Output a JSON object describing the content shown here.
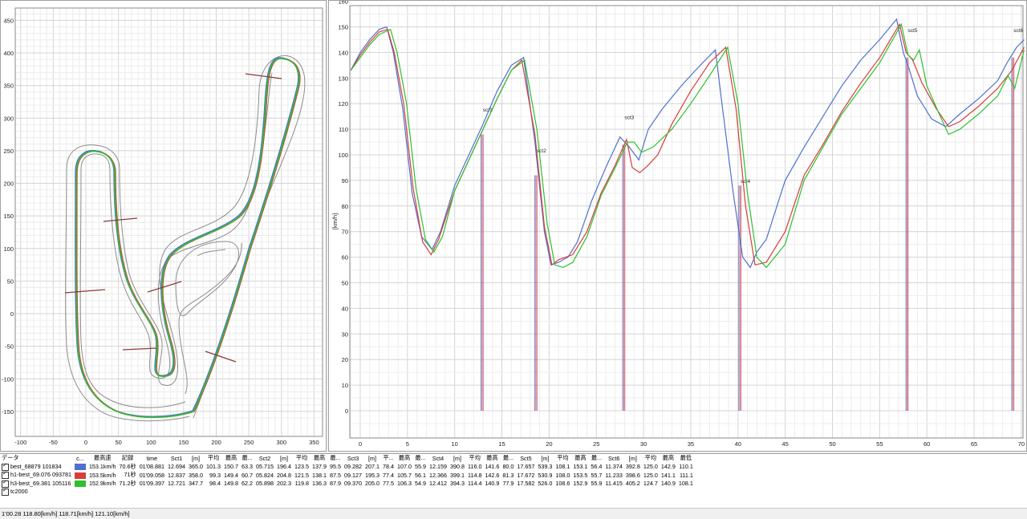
{
  "track_map": {
    "x_ticks": [
      "-100",
      "-50",
      "0",
      "50",
      "100",
      "150",
      "200",
      "250",
      "300",
      "350"
    ],
    "y_ticks": [
      "450",
      "400",
      "350",
      "300",
      "250",
      "200",
      "150",
      "100",
      "50",
      "0",
      "-50",
      "-100",
      "-150"
    ],
    "colors": {
      "border": "#8c8c8c",
      "green": "#2ec02e",
      "red": "#d83c3c",
      "blue": "#5070d0",
      "sector_line": "#8b3a3a"
    }
  },
  "speed_chart": {
    "y_unit_label": "[km/h]",
    "y_ticks": [
      "160",
      "150",
      "140",
      "130",
      "120",
      "110",
      "100",
      "90",
      "80",
      "70",
      "60",
      "50",
      "40",
      "30",
      "20",
      "10",
      "0"
    ],
    "x_ticks": [
      "0",
      "5",
      "10",
      "15",
      "20",
      "25",
      "30",
      "35",
      "40",
      "45",
      "50",
      "55",
      "60",
      "65",
      "70"
    ],
    "sector_labels": [
      "sct1",
      "sct2",
      "sct3",
      "sct4",
      "sct5",
      "sct6"
    ]
  },
  "chart_data": {
    "type": "line",
    "xlabel": "",
    "ylabel": "[km/h]",
    "xlim": [
      -1,
      70.3
    ],
    "ylim": [
      -5,
      161
    ],
    "grid": true,
    "series": [
      {
        "name": "best_68879 101834",
        "color": "#5070d0",
        "x": [
          -1,
          0,
          1,
          2,
          2.8,
          3.5,
          4.5,
          5.5,
          6.5,
          7.6,
          8.5,
          10,
          11.5,
          13,
          14.5,
          16,
          17.3,
          18.5,
          19.5,
          20.2,
          21,
          22,
          23,
          24.5,
          26,
          27.5,
          28.5,
          29.5,
          30.5,
          32,
          34,
          36,
          37.6,
          38.3,
          39.5,
          40.5,
          41.3,
          42,
          43,
          45,
          47,
          49,
          51,
          53,
          55,
          56.8,
          57.5,
          58,
          59,
          60.5,
          62,
          63.5,
          65.5,
          67.5,
          68.5,
          69.5,
          70.3
        ],
        "y": [
          133,
          140,
          145,
          149,
          150,
          140,
          118,
          85,
          68,
          63,
          70,
          88,
          100,
          112,
          125,
          135,
          138,
          105,
          70,
          57,
          58,
          60,
          66,
          82,
          95,
          107,
          103,
          98,
          110,
          118,
          127,
          135,
          141,
          120,
          85,
          60,
          56,
          62,
          67,
          90,
          103,
          115,
          127,
          137,
          145,
          153,
          140,
          135,
          123,
          114,
          111,
          116,
          122,
          129,
          136,
          142,
          145
        ]
      },
      {
        "name": "h1-best_69.076 093781",
        "color": "#d83c3c",
        "x": [
          -1,
          0,
          1,
          2,
          2.9,
          3.6,
          4.6,
          5.6,
          6.6,
          7.5,
          8.3,
          10,
          11.5,
          13,
          14.5,
          16,
          17.1,
          18.5,
          19.5,
          20.3,
          21,
          22.5,
          24,
          25.5,
          27,
          28.2,
          28.8,
          29.6,
          30.5,
          31.5,
          33,
          35,
          37,
          38.7,
          39.8,
          40.8,
          41.8,
          43,
          45,
          47,
          49,
          51,
          53,
          55,
          57.1,
          57.8,
          58.5,
          59.5,
          61,
          62.3,
          63.5,
          65.5,
          67.5,
          69,
          70.3
        ],
        "y": [
          133,
          139,
          144,
          148,
          149,
          140,
          120,
          87,
          66,
          61,
          67,
          86,
          98,
          110,
          122,
          133,
          137,
          108,
          72,
          57,
          59,
          61,
          70,
          85,
          96,
          106,
          95,
          93,
          96,
          100,
          112,
          125,
          136,
          142,
          118,
          80,
          57,
          58,
          70,
          92,
          104,
          117,
          128,
          138,
          151,
          140,
          137,
          128,
          118,
          111,
          113,
          119,
          126,
          133,
          142
        ]
      },
      {
        "name": "h3-best_69.381 105116",
        "color": "#2ec02e",
        "x": [
          -1,
          0,
          1,
          2,
          3.2,
          3.9,
          4.9,
          5.9,
          6.9,
          7.8,
          8.7,
          10,
          11.5,
          13,
          14.5,
          16,
          17.4,
          18.7,
          19.8,
          20.6,
          21.5,
          22.5,
          24,
          25.5,
          27,
          28.3,
          29,
          29.8,
          31,
          33,
          35,
          37,
          38.9,
          40,
          41,
          42,
          43,
          45,
          47,
          49,
          51,
          53,
          55,
          57.3,
          58,
          58.6,
          59.2,
          60,
          61.3,
          62.3,
          63.5,
          65.5,
          67.5,
          68.6,
          69.3,
          70.3
        ],
        "y": [
          133,
          138,
          143,
          147,
          149,
          140,
          120,
          87,
          67,
          62,
          68,
          86,
          98,
          110,
          122,
          133,
          137,
          110,
          73,
          57,
          56,
          58,
          68,
          84,
          95,
          105,
          105,
          101,
          103,
          110,
          120,
          131,
          142,
          120,
          85,
          60,
          56,
          65,
          90,
          103,
          116,
          126,
          136,
          151,
          139,
          137,
          141,
          127,
          116,
          108,
          110,
          116,
          123,
          131,
          126,
          141
        ]
      }
    ],
    "sector_markers": [
      {
        "label": "sct1",
        "x": 12.9
      },
      {
        "label": "sct2",
        "x": 18.6
      },
      {
        "label": "sct3",
        "x": 27.9
      },
      {
        "label": "sct4",
        "x": 40.2
      },
      {
        "label": "sct5",
        "x": 57.9
      },
      {
        "label": "sct6",
        "x": 69.1
      }
    ]
  },
  "table": {
    "headers": [
      "データ",
      "c...",
      "最高速",
      "記録",
      "time",
      "Sct1",
      "[m]",
      "平均",
      "最高",
      "最...",
      "Sct2",
      "[m]",
      "平均",
      "最高",
      "最...",
      "Sct3",
      "[m]",
      "平...",
      "最高",
      "最...",
      "Sct4",
      "[m]",
      "平均",
      "最高",
      "最...",
      "Sct5",
      "[m]",
      "平均",
      "最高",
      "最...",
      "Sct6",
      "[m]",
      "平均",
      "最高",
      "最低"
    ],
    "rows": [
      {
        "name": "best_68879 101834",
        "color": "#5070d0",
        "cells": [
          "153.1km/h",
          "70.6秒",
          "01'08.881",
          "12.694",
          "365.0",
          "101.3",
          "150.7",
          "63.3",
          "05.715",
          "196.4",
          "123.5",
          "137.9",
          "95.5",
          "09.282",
          "207.1",
          "78.4",
          "107.0",
          "55.9",
          "12.159",
          "390.8",
          "116.0",
          "141.6",
          "80.0",
          "17.657",
          "539.3",
          "108.1",
          "153.1",
          "56.4",
          "11.374",
          "392.8",
          "125.0",
          "142.9",
          "110.1"
        ]
      },
      {
        "name": "h1-best_69.076 093781",
        "color": "#d83c3c",
        "cells": [
          "153.5km/h",
          "71秒",
          "01'09.058",
          "12.837",
          "358.0",
          "99.3",
          "149.4",
          "60.7",
          "05.824",
          "204.8",
          "121.5",
          "138.1",
          "87.5",
          "09.127",
          "195.3",
          "77.4",
          "105.7",
          "56.1",
          "12.366",
          "399.1",
          "114.8",
          "142.6",
          "81.3",
          "17.672",
          "530.9",
          "108.0",
          "153.5",
          "55.7",
          "11.233",
          "398.6",
          "125.0",
          "141.1",
          "111.1"
        ]
      },
      {
        "name": "h3-best_69.381 105116",
        "color": "#2ec02e",
        "cells": [
          "152.9km/h",
          "71.2秒",
          "01'09.397",
          "12.721",
          "347.7",
          "98.4",
          "149.8",
          "62.2",
          "05.898",
          "202.3",
          "119.8",
          "136.3",
          "87.9",
          "09.370",
          "205.0",
          "77.5",
          "106.3",
          "54.9",
          "12.412",
          "394.3",
          "114.4",
          "140.9",
          "77.9",
          "17.582",
          "526.0",
          "108.6",
          "152.9",
          "55.9",
          "11.415",
          "405.2",
          "124.7",
          "140.9",
          "108.1"
        ]
      },
      {
        "name": "tc2000",
        "color": "",
        "cells": []
      }
    ]
  },
  "status_bar": "1'00.28 118.80[km/h] 118.71[km/h] 121.10[km/h]"
}
